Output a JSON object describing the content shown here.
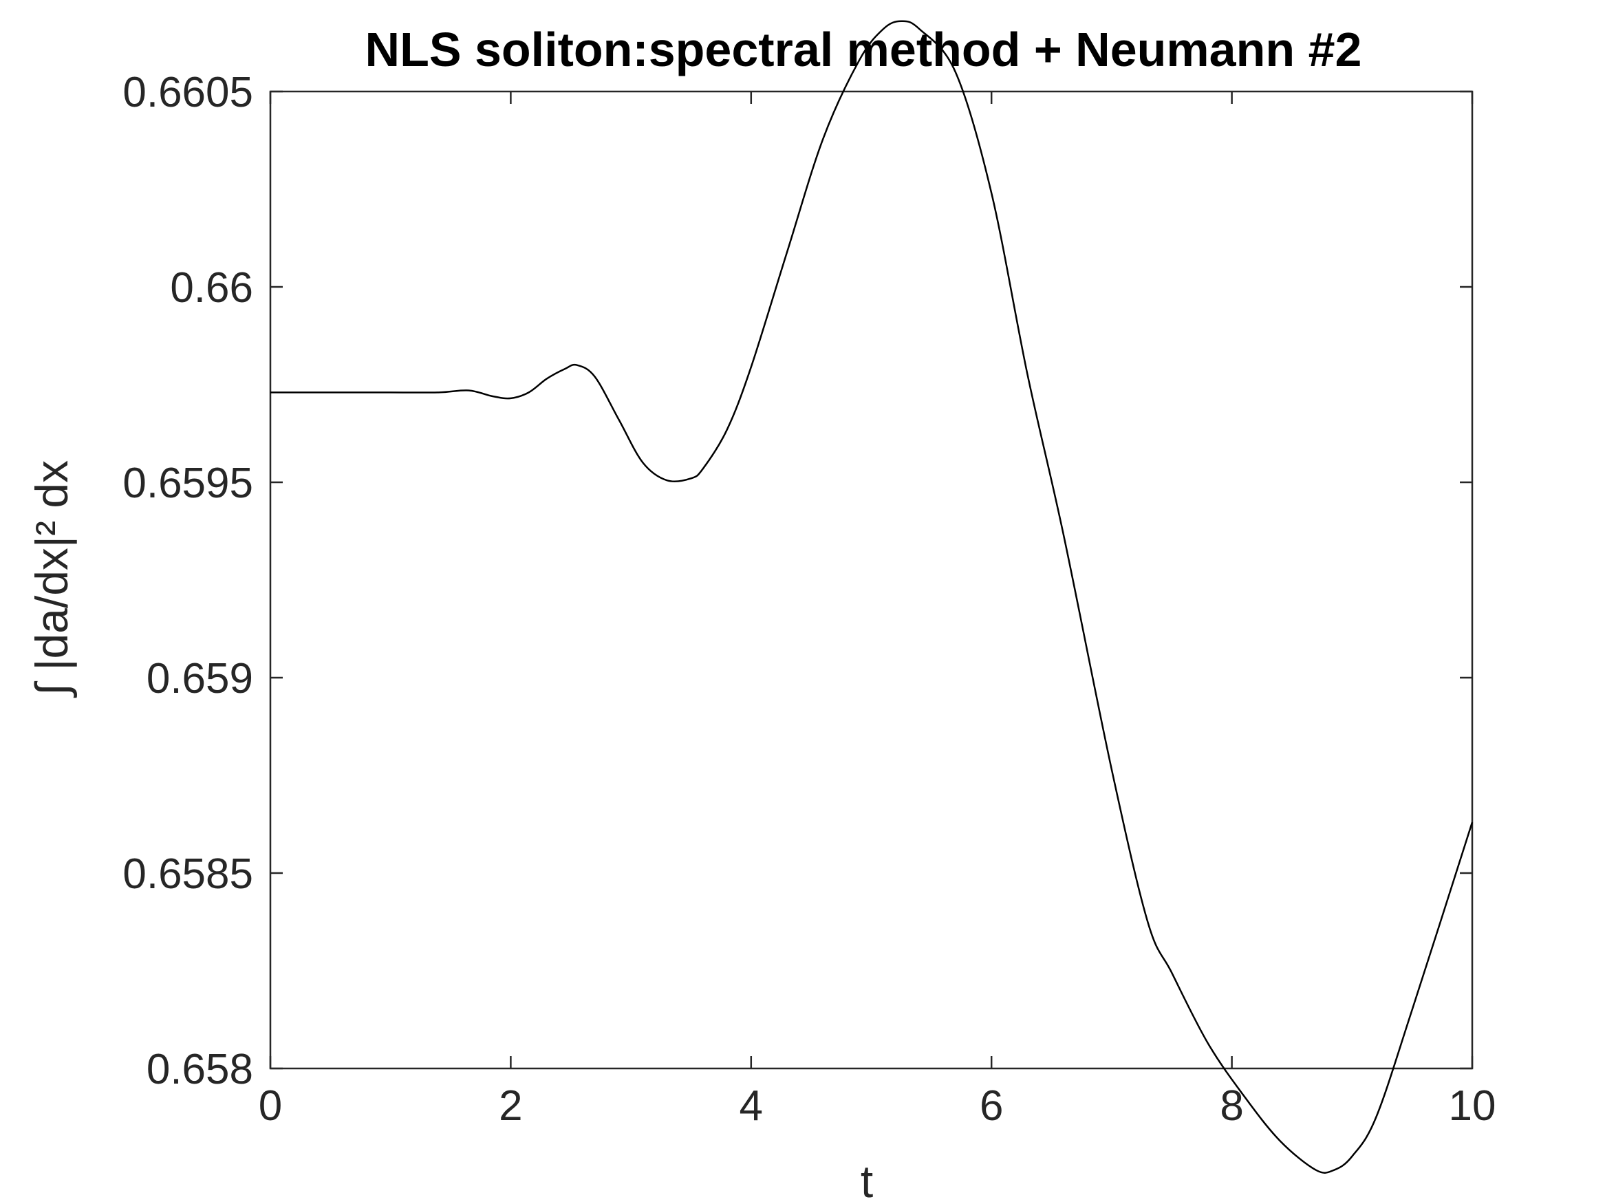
{
  "chart_data": {
    "type": "line",
    "title": "NLS soliton:spectral method + Neumann #2",
    "xlabel": "t",
    "ylabel": "∫ |da/dx|² dx",
    "xlim": [
      0,
      10
    ],
    "ylim": [
      0.658,
      0.6605
    ],
    "xticks": [
      0,
      2,
      4,
      6,
      8,
      10
    ],
    "xtick_labels": [
      "0",
      "2",
      "4",
      "6",
      "8",
      "10"
    ],
    "yticks": [
      0.658,
      0.6585,
      0.659,
      0.6595,
      0.66,
      0.6605
    ],
    "ytick_labels": [
      "0.658",
      "0.6585",
      "0.659",
      "0.6595",
      "0.66",
      "0.6605"
    ],
    "grid": false,
    "line_color": "#000000",
    "series": [
      {
        "x": [
          0,
          0.5,
          1.0,
          1.4,
          1.65,
          1.85,
          2.0,
          2.15,
          2.3,
          2.45,
          2.55,
          2.7,
          2.9,
          3.1,
          3.3,
          3.5,
          3.6,
          3.8,
          4.0,
          4.3,
          4.6,
          4.9,
          5.1,
          5.25,
          5.4,
          5.7,
          6.0,
          6.3,
          6.6,
          7.0,
          7.3,
          7.5,
          7.8,
          8.1,
          8.4,
          8.7,
          8.85,
          9.0,
          9.2,
          9.5,
          10.0
        ],
        "y": [
          0.65973,
          0.65973,
          0.65973,
          0.65973,
          0.659735,
          0.65972,
          0.659715,
          0.65973,
          0.659765,
          0.65979,
          0.6598,
          0.65977,
          0.65966,
          0.65955,
          0.659505,
          0.65951,
          0.659535,
          0.659635,
          0.659795,
          0.66009,
          0.66038,
          0.66058,
          0.66066,
          0.66068,
          0.66066,
          0.66055,
          0.66024,
          0.659775,
          0.659365,
          0.658765,
          0.658375,
          0.658245,
          0.658065,
          0.65793,
          0.657815,
          0.65774,
          0.65774,
          0.657775,
          0.657875,
          0.65815,
          0.65863
        ]
      }
    ]
  }
}
